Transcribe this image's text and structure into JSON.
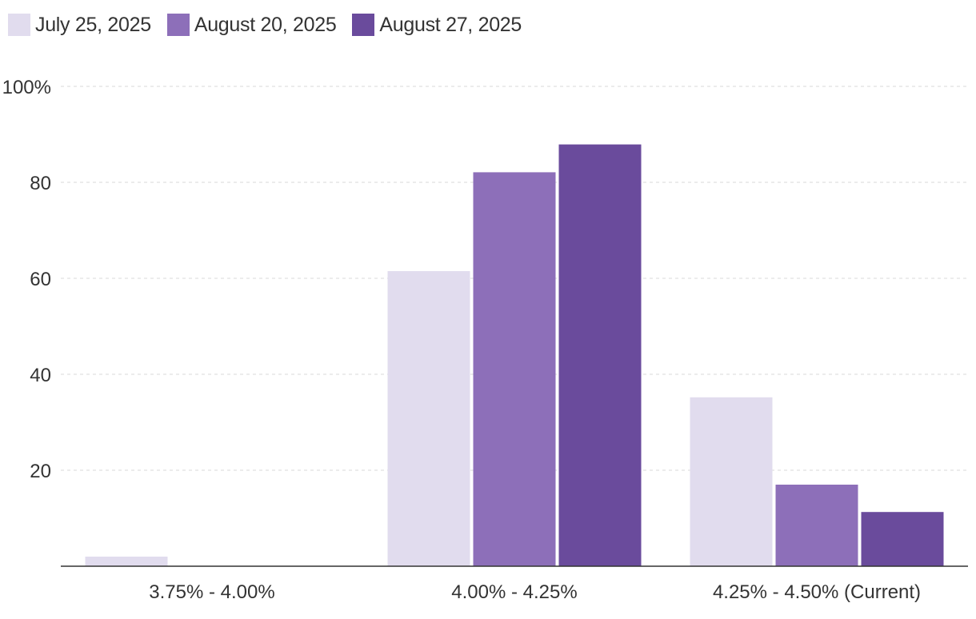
{
  "chart_data": {
    "type": "bar",
    "title": "",
    "xlabel": "",
    "ylabel": "",
    "categories": [
      "3.75% - 4.00%",
      "4.00% - 4.25%",
      "4.25% - 4.50% (Current)"
    ],
    "series": [
      {
        "name": "July 25, 2025",
        "color": "#e1dcee",
        "values": [
          2.0,
          61.5,
          35.2
        ]
      },
      {
        "name": "August 20, 2025",
        "color": "#8d6fb9",
        "values": [
          0,
          82.1,
          17.0
        ]
      },
      {
        "name": "August 27, 2025",
        "color": "#6a4b9c",
        "values": [
          0,
          87.9,
          11.3
        ]
      }
    ],
    "ylim": [
      0,
      100
    ],
    "yticks": [
      20,
      40,
      60,
      80,
      100
    ],
    "ytick_labels": [
      "20",
      "40",
      "60",
      "80",
      "100%"
    ],
    "grid": true,
    "legend_position": "top-left"
  }
}
